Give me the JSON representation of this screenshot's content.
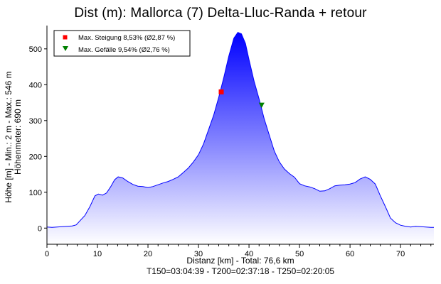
{
  "chart_data": {
    "type": "area",
    "title": "Dist (m): Mallorca (7) Delta-Lluc-Randa + retour",
    "ylabel_lines": [
      "Höhe [m] - Min.: 2 m - Max.: 546 m",
      "Höhenmeter: 690 m"
    ],
    "xlabel": "Distanz [km] - Total: 76,6 km",
    "footer": "T150=03:04:39 - T200=02:37:18 - T250=02:20:05",
    "xlim": [
      0,
      76.6
    ],
    "ylim": [
      -45,
      565
    ],
    "x_ticks": [
      0,
      10,
      20,
      30,
      40,
      50,
      60,
      70
    ],
    "y_ticks": [
      0,
      100,
      200,
      300,
      400,
      500
    ],
    "grid": false,
    "legend_position": "top-left",
    "legend": [
      {
        "label": "Max. Steigung 8,53% (Ø2,87 %)",
        "marker": "square",
        "color": "#ff0000"
      },
      {
        "label": "Max. Gefälle 9,54% (Ø2,76 %)",
        "marker": "triangle-down",
        "color": "#008000"
      }
    ],
    "series": [
      {
        "x": [
          0,
          1,
          2,
          3,
          4,
          5,
          5.8,
          6.5,
          7.5,
          8.5,
          9.5,
          10.2,
          11,
          11.8,
          12.6,
          13.4,
          14.1,
          15,
          16,
          17,
          18,
          19,
          20,
          21,
          22,
          23,
          24,
          25,
          26,
          27,
          28,
          29,
          30,
          31,
          32,
          33,
          34,
          35,
          36,
          37,
          37.8,
          38.5,
          39.3,
          40,
          41,
          42,
          43,
          44,
          45,
          46,
          47,
          48,
          49,
          50,
          51,
          52,
          53,
          54,
          55,
          56,
          57,
          58,
          59,
          60,
          61,
          62,
          63,
          64,
          65,
          66,
          67,
          68,
          69,
          70,
          71,
          72,
          73,
          74,
          75,
          76,
          76.6
        ],
        "y": [
          3,
          2,
          3,
          4,
          5,
          6,
          9,
          20,
          35,
          60,
          90,
          95,
          92,
          98,
          115,
          135,
          143,
          140,
          130,
          122,
          117,
          116,
          113,
          116,
          121,
          126,
          130,
          136,
          143,
          155,
          168,
          185,
          205,
          235,
          275,
          315,
          365,
          420,
          480,
          530,
          546,
          542,
          515,
          470,
          410,
          360,
          305,
          260,
          215,
          185,
          165,
          152,
          142,
          124,
          118,
          115,
          110,
          103,
          104,
          110,
          118,
          120,
          121,
          123,
          127,
          137,
          143,
          136,
          123,
          90,
          60,
          28,
          15,
          8,
          5,
          3,
          5,
          4,
          3,
          2,
          2
        ]
      }
    ],
    "markers": [
      {
        "name": "max-steigung",
        "x": 34.5,
        "y": 380
      },
      {
        "name": "max-gefaelle",
        "x": 42.5,
        "y": 343
      }
    ],
    "colors": {
      "fill_top": "#0000ff",
      "fill_bottom": "#ffffff",
      "line": "#0000ff",
      "max_steigung": "#ff0000",
      "max_gefaelle": "#008000"
    }
  }
}
